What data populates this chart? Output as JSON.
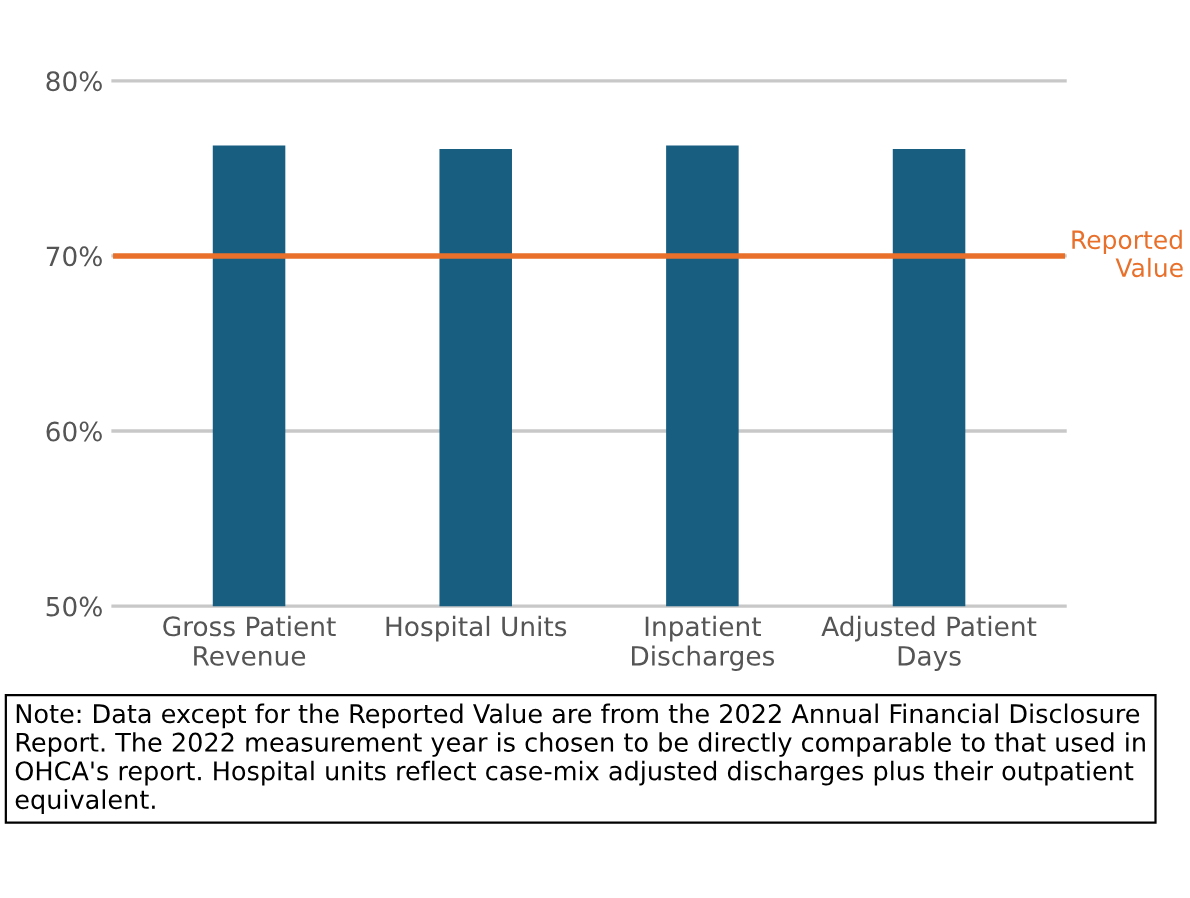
{
  "chart_data": {
    "type": "bar",
    "categories": [
      "Gross Patient\nRevenue",
      "Hospital Units",
      "Inpatient\nDischarges",
      "Adjusted Patient\nDays"
    ],
    "values": [
      76.3,
      76.1,
      76.3,
      76.1
    ],
    "color": "#175e80",
    "ylim": [
      50,
      80
    ],
    "yticks": [
      {
        "value": 50,
        "label": "50%"
      },
      {
        "value": 60,
        "label": "60%"
      },
      {
        "value": 70,
        "label": "70%"
      },
      {
        "value": 80,
        "label": "80%"
      }
    ],
    "grid": "y",
    "ref_lines": [
      {
        "axis": "y",
        "value": 70,
        "label": "Reported\nValue",
        "color": "#e8702a",
        "line_style": "solid"
      }
    ],
    "annotations": [
      "Note: Data except for the Reported Value are from the 2022 Annual Financial Disclosure Report. The 2022 measurement year is chosen to be directly comparable to that used in OHCA's report. Hospital units reflect case-mix adjusted discharges plus their outpatient equivalent."
    ]
  }
}
